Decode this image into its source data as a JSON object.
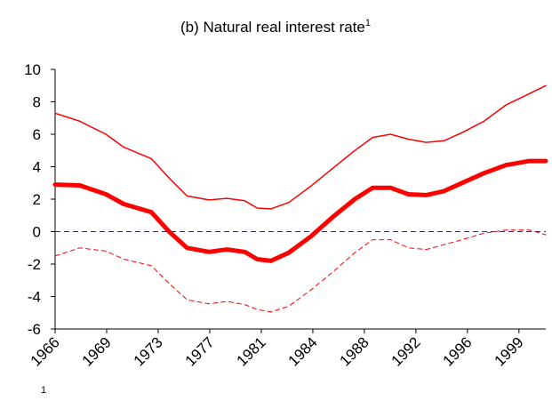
{
  "chart_data": {
    "type": "line",
    "title": "(b) Natural real interest rate",
    "title_superscript": "1",
    "footnote": "1",
    "x": [
      1966,
      1967.8,
      1969.7,
      1971.0,
      1973.0,
      1974.3,
      1975.6,
      1977.2,
      1978.5,
      1979.8,
      1980.7,
      1981.7,
      1983.0,
      1984.6,
      1986.2,
      1987.8,
      1989.1,
      1990.4,
      1991.7,
      1993.0,
      1994.3,
      1995.6,
      1997.2,
      1998.8,
      2000.5,
      2001.7
    ],
    "series": [
      {
        "color": "#ff0000",
        "width": 1.5,
        "dash": false,
        "values": [
          7.3,
          6.8,
          6.0,
          5.2,
          4.5,
          3.3,
          2.2,
          1.95,
          2.05,
          1.9,
          1.45,
          1.4,
          1.8,
          2.8,
          3.9,
          5.0,
          5.8,
          6.0,
          5.7,
          5.5,
          5.6,
          6.1,
          6.8,
          7.8,
          8.5,
          9.0
        ]
      },
      {
        "color": "#ff0000",
        "width": 5,
        "dash": false,
        "values": [
          2.9,
          2.85,
          2.3,
          1.7,
          1.2,
          0.0,
          -1.0,
          -1.25,
          -1.1,
          -1.25,
          -1.7,
          -1.8,
          -1.3,
          -0.3,
          0.9,
          2.0,
          2.7,
          2.7,
          2.3,
          2.25,
          2.5,
          3.0,
          3.6,
          4.1,
          4.35,
          4.35
        ]
      },
      {
        "color": "#ff0000",
        "width": 1,
        "dash": true,
        "values": [
          -1.5,
          -1.0,
          -1.2,
          -1.7,
          -2.1,
          -3.2,
          -4.2,
          -4.45,
          -4.3,
          -4.5,
          -4.8,
          -4.95,
          -4.6,
          -3.6,
          -2.5,
          -1.3,
          -0.5,
          -0.5,
          -1.0,
          -1.1,
          -0.8,
          -0.5,
          -0.1,
          0.1,
          0.1,
          -0.2
        ]
      }
    ],
    "zero_line_color": "#333366",
    "xlim": [
      1966,
      2001.7
    ],
    "xticks": [
      1966,
      {
        "value": 1969.75,
        "label": "1969"
      },
      {
        "value": 1973.5,
        "label": "1973"
      },
      {
        "value": 1977.25,
        "label": "1977"
      },
      1981,
      {
        "value": 1984.75,
        "label": "1984"
      },
      {
        "value": 1988.5,
        "label": "1988"
      },
      {
        "value": 1992.25,
        "label": "1992"
      },
      1996,
      {
        "value": 1999.75,
        "label": "1999"
      }
    ],
    "ylim": [
      -6,
      10
    ],
    "yticks": [
      -6,
      -4,
      -2,
      0,
      2,
      4,
      6,
      8,
      10
    ]
  }
}
